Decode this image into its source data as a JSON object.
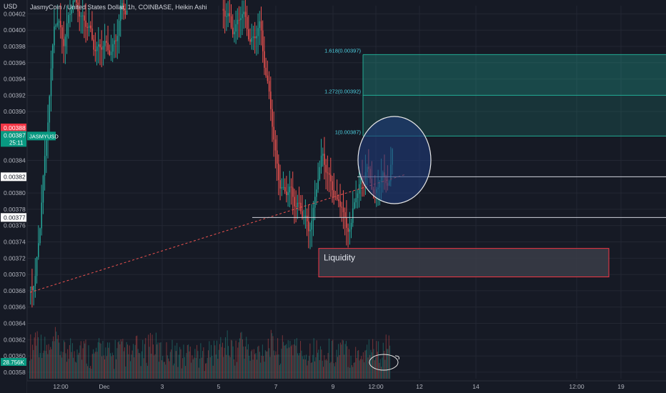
{
  "header": {
    "currency": "USD",
    "title": "JasmyCoin / United States Dollar, 1h, COINBASE, Heikin Ashi"
  },
  "price_axis": {
    "ticks": [
      "0.00402",
      "0.00400",
      "0.00398",
      "0.00396",
      "0.00394",
      "0.00392",
      "0.00390",
      "0.00384",
      "0.00380",
      "0.00378",
      "0.00376",
      "0.00374",
      "0.00372",
      "0.00370",
      "0.00368",
      "0.00366",
      "0.00364",
      "0.00362",
      "0.00360",
      "0.00358"
    ],
    "tick_values": [
      0.00402,
      0.004,
      0.00398,
      0.00396,
      0.00394,
      0.00392,
      0.0039,
      0.00384,
      0.0038,
      0.00378,
      0.00376,
      0.00374,
      0.00372,
      0.0037,
      0.00368,
      0.00366,
      0.00364,
      0.00362,
      0.0036,
      0.00358
    ],
    "badges": {
      "red": {
        "label": "0.00388",
        "value": 0.00388
      },
      "green": {
        "label": "0.00387",
        "symbol": "JASMYUSD",
        "countdown": "25:11",
        "value": 0.00387
      },
      "level_upper": {
        "label": "0.00382",
        "value": 0.00382
      },
      "level_lower": {
        "label": "0.00377",
        "value": 0.00377
      },
      "volume": {
        "label": "28.756K"
      }
    }
  },
  "time_axis": {
    "labels": [
      "12:00",
      "Dec",
      "3",
      "5",
      "7",
      "9",
      "12:00",
      "12",
      "14",
      "12:00",
      "19"
    ]
  },
  "annotations": {
    "fib_1618": {
      "label": "1.618(0.00397)",
      "value": 0.00397
    },
    "fib_1272": {
      "label": "1.272(0.00392)",
      "value": 0.00392
    },
    "fib_1": {
      "label": "1(0.00387)",
      "value": 0.00387
    },
    "liquidity_label": "Liquidity",
    "liquidity_zone": [
      0.003697,
      0.003732
    ]
  },
  "colors": {
    "background": "#161a25",
    "up": "#26a69a",
    "down": "#ef5350",
    "fib": "#22ab94",
    "circle_fill": "#1f3a7a",
    "liquidity_border": "#f23645"
  },
  "chart_data": {
    "type": "candlestick",
    "title": "JasmyCoin / United States Dollar, 1h, COINBASE, Heikin Ashi",
    "xlabel": "",
    "ylabel": "USD",
    "ylim": [
      0.003572,
      0.00403
    ],
    "grid": true,
    "series": [
      {
        "name": "price_path",
        "values": [
          [
            0,
            0.003685
          ],
          [
            1,
            0.0037
          ],
          [
            2,
            0.00376
          ],
          [
            3,
            0.00384
          ],
          [
            4,
            0.00393
          ],
          [
            5,
            0.00401
          ],
          [
            6,
            0.004
          ],
          [
            7,
            0.00399
          ],
          [
            8,
            0.00402
          ],
          [
            9,
            0.00403
          ],
          [
            10,
            0.00403
          ],
          [
            13,
            0.003985
          ],
          [
            16,
            0.003975
          ],
          [
            18,
            0.00399
          ],
          [
            19,
            0.004025
          ],
          [
            20,
            0.00403
          ],
          [
            40,
            0.00403
          ],
          [
            42,
            0.004
          ],
          [
            44,
            0.00402
          ],
          [
            46,
            0.00399
          ],
          [
            48,
            0.004
          ],
          [
            49,
            0.003955
          ],
          [
            50,
            0.00392
          ],
          [
            51,
            0.003845
          ],
          [
            52,
            0.003815
          ],
          [
            53,
            0.003805
          ],
          [
            54,
            0.0038
          ],
          [
            55,
            0.00379
          ],
          [
            56,
            0.00379
          ],
          [
            57,
            0.00377
          ],
          [
            58,
            0.00375
          ],
          [
            59,
            0.00378
          ],
          [
            60,
            0.00382
          ],
          [
            61,
            0.00384
          ],
          [
            62,
            0.00383
          ],
          [
            63,
            0.00381
          ],
          [
            64,
            0.00378
          ],
          [
            65,
            0.00379
          ],
          [
            66,
            0.00376
          ],
          [
            67,
            0.003755
          ],
          [
            68,
            0.0038
          ],
          [
            69,
            0.00382
          ],
          [
            70,
            0.003825
          ],
          [
            71,
            0.003815
          ],
          [
            72,
            0.0038
          ],
          [
            73,
            0.00382
          ],
          [
            74,
            0.00381
          ],
          [
            75,
            0.00382
          ],
          [
            75.8,
            0.00387
          ]
        ]
      },
      {
        "name": "volume_relative",
        "values": [
          0.35,
          0.55,
          0.4,
          0.3,
          0.25,
          0.45,
          0.3,
          0.2,
          0.35,
          0.25,
          0.4,
          0.3,
          0.2,
          0.15,
          0.25,
          0.35,
          0.2,
          0.15,
          0.3,
          0.25,
          0.2,
          0.15,
          0.3,
          0.2,
          0.25,
          0.45,
          0.35,
          0.25,
          0.2,
          0.3,
          0.25,
          0.2,
          0.15,
          0.25,
          0.3,
          0.2,
          0.15,
          0.25,
          0.2,
          0.3,
          0.35,
          0.4,
          0.3,
          0.25,
          0.5,
          0.35,
          0.2,
          0.15,
          0.25,
          0.3,
          0.4,
          0.35,
          0.25,
          0.3,
          0.45,
          0.35,
          0.3,
          0.25,
          0.2,
          0.3,
          0.25,
          0.2,
          0.15,
          0.25,
          0.2,
          0.3,
          0.25,
          0.2,
          0.15,
          0.25,
          0.2,
          0.35,
          0.3,
          0.25,
          0.2,
          0.35
        ]
      },
      {
        "name": "trendline",
        "values": [
          [
            0,
            0.003678
          ],
          [
            78.5,
            0.003823
          ]
        ]
      }
    ]
  }
}
